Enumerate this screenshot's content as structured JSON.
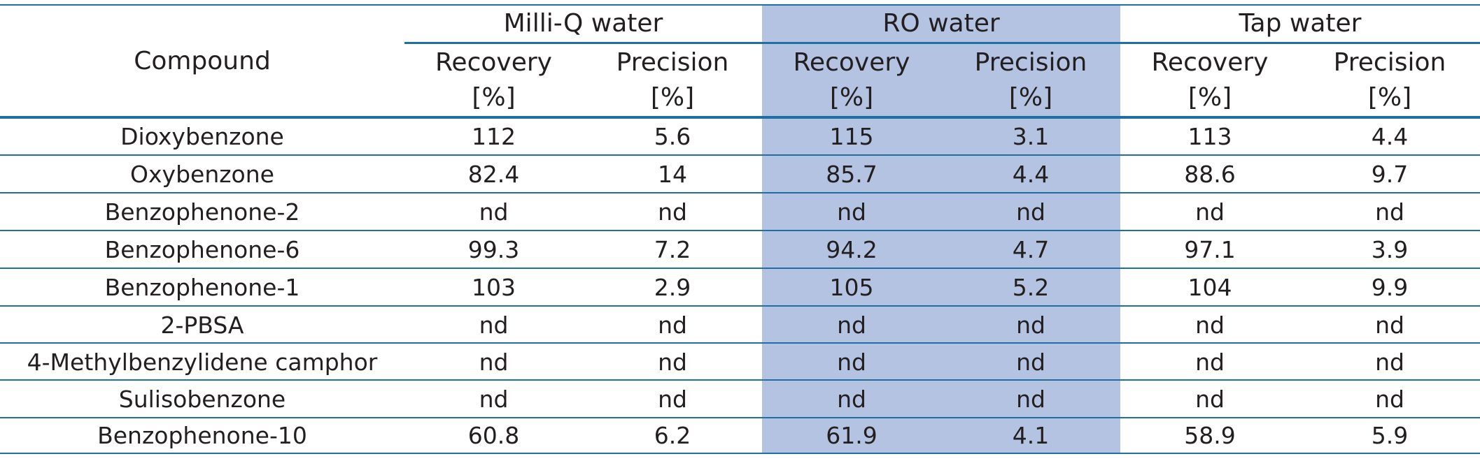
{
  "table": {
    "compound_header": "Compound",
    "groups": [
      {
        "label": "Milli-Q water",
        "recovery": "Recovery",
        "precision": "Precision",
        "unit": "[%]"
      },
      {
        "label": "RO water",
        "recovery": "Recovery",
        "precision": "Precision",
        "unit": "[%]"
      },
      {
        "label": "Tap water",
        "recovery": "Recovery",
        "precision": "Precision",
        "unit": "[%]"
      }
    ],
    "rows": [
      {
        "compound": "Dioxybenzone",
        "values": [
          "112",
          "5.6",
          "115",
          "3.1",
          "113",
          "4.4"
        ]
      },
      {
        "compound": "Oxybenzone",
        "values": [
          "82.4",
          "14",
          "85.7",
          "4.4",
          "88.6",
          "9.7"
        ]
      },
      {
        "compound": "Benzophenone-2",
        "values": [
          "nd",
          "nd",
          "nd",
          "nd",
          "nd",
          "nd"
        ]
      },
      {
        "compound": "Benzophenone-6",
        "values": [
          "99.3",
          "7.2",
          "94.2",
          "4.7",
          "97.1",
          "3.9"
        ]
      },
      {
        "compound": "Benzophenone-1",
        "values": [
          "103",
          "2.9",
          "105",
          "5.2",
          "104",
          "9.9"
        ]
      },
      {
        "compound": "2-PBSA",
        "values": [
          "nd",
          "nd",
          "nd",
          "nd",
          "nd",
          "nd"
        ]
      },
      {
        "compound": "4-Methylbenzylidene camphor",
        "values": [
          "nd",
          "nd",
          "nd",
          "nd",
          "nd",
          "nd"
        ]
      },
      {
        "compound": "Sulisobenzone",
        "values": [
          "nd",
          "nd",
          "nd",
          "nd",
          "nd",
          "nd"
        ]
      },
      {
        "compound": "Benzophenone-10",
        "values": [
          "60.8",
          "6.2",
          "61.9",
          "4.1",
          "58.9",
          "5.9"
        ]
      }
    ],
    "colors": {
      "rule": "#1f6fa3",
      "shade": "#b3c3e1",
      "text": "#231f20"
    }
  }
}
